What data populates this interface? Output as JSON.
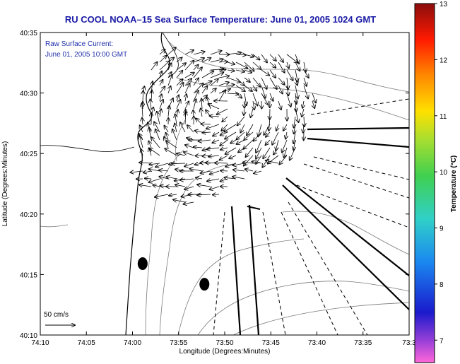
{
  "chart_data": {
    "type": "map",
    "title": "RU COOL  NOAA–15  Sea Surface Temperature:  June 01, 2005 1024 GMT",
    "annotation_line1": "Raw Surface Current:",
    "annotation_line2": "June 01, 2005 10:00 GMT",
    "scale_label": "50 cm/s",
    "xlabel": "Longitude (Degrees:Minutes)",
    "ylabel": "Latitude (Degrees:Minutes)",
    "x_ticks": [
      "74:10",
      "74:05",
      "74:00",
      "73:55",
      "73:50",
      "73:45",
      "73:40",
      "73:35",
      "73:3"
    ],
    "y_ticks": [
      "40:35",
      "40:30",
      "40:25",
      "40:20",
      "40:15",
      "40:10"
    ],
    "xlim_minutes": [
      0,
      40
    ],
    "ylim_minutes": [
      0,
      25
    ],
    "colorbar": {
      "label": "Temperature (°C)",
      "ticks": [
        "13",
        "12",
        "11",
        "10",
        "9",
        "8",
        "7"
      ],
      "range": [
        6.6,
        13
      ]
    },
    "stations": [
      {
        "name": "station-1",
        "x": 11.1,
        "y": 5.9
      },
      {
        "name": "station-2",
        "x": 17.8,
        "y": 4.2
      }
    ],
    "current_field": {
      "center_a": [
        20.5,
        19.6
      ],
      "center_b": [
        16.0,
        16.5
      ],
      "scale_vector_cm_s": 50
    }
  }
}
